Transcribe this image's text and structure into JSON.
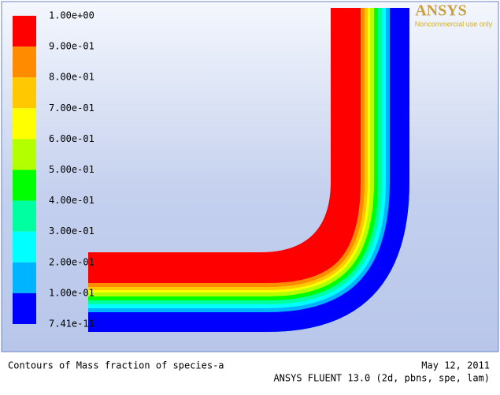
{
  "colorbar": {
    "labels": [
      "1.00e+00",
      "9.00e-01",
      "8.00e-01",
      "7.00e-01",
      "6.00e-01",
      "5.00e-01",
      "4.00e-01",
      "3.00e-01",
      "2.00e-01",
      "1.00e-01",
      "7.41e-11"
    ],
    "colors": [
      "#ff0000",
      "#ff8c00",
      "#ffc800",
      "#ffff00",
      "#b4ff00",
      "#00ff00",
      "#00ffa0",
      "#00ffff",
      "#00b4ff",
      "#0000ff"
    ]
  },
  "logo": {
    "brand": "ANSYS",
    "note": "Noncommercial use only"
  },
  "footer": {
    "title": "Contours of Mass fraction of species-a",
    "date": "May 12, 2011",
    "software": "ANSYS FLUENT 13.0 (2d, pbns, spe, lam)"
  }
}
